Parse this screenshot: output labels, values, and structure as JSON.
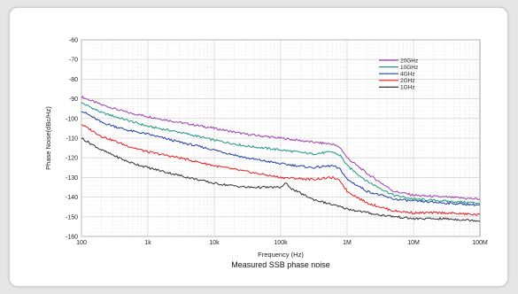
{
  "chart_data": {
    "type": "line",
    "title": "",
    "caption": "Measured SSB phase noise",
    "xlabel": "Frequency (Hz)",
    "ylabel": "Phase Noise(dBc/Hz)",
    "x_scale": "log",
    "xlim": [
      100,
      100000000
    ],
    "ylim": [
      -160,
      -60
    ],
    "grid": true,
    "legend_position": "top-right",
    "x_ticks": [
      {
        "value": 100,
        "label": "100"
      },
      {
        "value": 1000,
        "label": "1k"
      },
      {
        "value": 10000,
        "label": "10k"
      },
      {
        "value": 100000,
        "label": "100k"
      },
      {
        "value": 1000000,
        "label": "1M"
      },
      {
        "value": 10000000,
        "label": "10M"
      },
      {
        "value": 100000000,
        "label": "100M"
      }
    ],
    "y_ticks": [
      {
        "value": -60,
        "label": "-60"
      },
      {
        "value": -70,
        "label": "-70"
      },
      {
        "value": -80,
        "label": "-80"
      },
      {
        "value": -90,
        "label": "-90"
      },
      {
        "value": -100,
        "label": "-100"
      },
      {
        "value": -110,
        "label": "-110"
      },
      {
        "value": -120,
        "label": "-120"
      },
      {
        "value": -130,
        "label": "-130"
      },
      {
        "value": -140,
        "label": "-140"
      },
      {
        "value": -150,
        "label": "-150"
      },
      {
        "value": -160,
        "label": "-160"
      }
    ],
    "series": [
      {
        "name": "20GHz",
        "color": "#a040b0",
        "x": [
          100,
          200,
          500,
          1000,
          3000,
          10000,
          30000,
          100000,
          300000,
          600000,
          800000,
          1000000,
          2000000,
          5000000,
          10000000,
          30000000,
          100000000
        ],
        "y": [
          -89,
          -93,
          -97,
          -99,
          -102,
          -105,
          -108,
          -110,
          -112,
          -113,
          -115,
          -120,
          -128,
          -137,
          -139,
          -140,
          -141
        ]
      },
      {
        "name": "10GHz",
        "color": "#209880",
        "x": [
          100,
          200,
          500,
          1000,
          3000,
          10000,
          30000,
          100000,
          300000,
          600000,
          800000,
          1000000,
          2000000,
          5000000,
          10000000,
          30000000,
          100000000
        ],
        "y": [
          -92,
          -97,
          -101,
          -104,
          -107,
          -111,
          -114,
          -116,
          -118,
          -117,
          -119,
          -124,
          -132,
          -139,
          -141,
          -142,
          -143
        ]
      },
      {
        "name": "4GHz",
        "color": "#2040a0",
        "x": [
          100,
          200,
          500,
          1000,
          3000,
          10000,
          30000,
          100000,
          300000,
          600000,
          800000,
          1000000,
          2000000,
          5000000,
          10000000,
          30000000,
          100000000
        ],
        "y": [
          -96,
          -102,
          -106,
          -108,
          -112,
          -116,
          -120,
          -123,
          -125,
          -124,
          -126,
          -131,
          -137,
          -141,
          -142,
          -143,
          -144
        ]
      },
      {
        "name": "2GHz",
        "color": "#e02020",
        "x": [
          100,
          200,
          500,
          1000,
          3000,
          10000,
          30000,
          100000,
          300000,
          600000,
          800000,
          1000000,
          2000000,
          5000000,
          10000000,
          30000000,
          100000000
        ],
        "y": [
          -103,
          -109,
          -114,
          -117,
          -120,
          -124,
          -127,
          -130,
          -131,
          -130,
          -132,
          -137,
          -143,
          -147,
          -148,
          -148,
          -149
        ]
      },
      {
        "name": "1GHz",
        "color": "#333333",
        "x": [
          100,
          200,
          500,
          1000,
          3000,
          10000,
          30000,
          100000,
          120000,
          150000,
          300000,
          1000000,
          3000000,
          10000000,
          30000000,
          100000000
        ],
        "y": [
          -110,
          -116,
          -122,
          -125,
          -129,
          -133,
          -135,
          -135,
          -133,
          -136,
          -141,
          -146,
          -149,
          -151,
          -151,
          -152
        ]
      }
    ]
  }
}
